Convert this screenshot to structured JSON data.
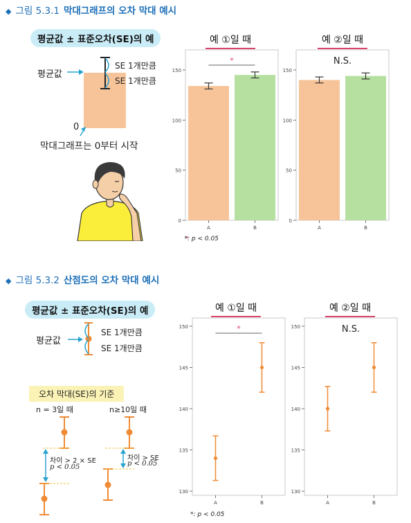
{
  "fig1": {
    "heading_number": "그림 5.3.1",
    "heading_title": "막대그래프의 오차 막대 예시",
    "pill": "평균값 ± 표준오차(SE)의 예",
    "mean_label": "평균값",
    "se_label_1": "SE 1개만큼",
    "se_label_2": "SE 1개만큼",
    "zero_label": "0",
    "note": "막대그래프는 0부터 시작",
    "panel_left_title": "예 ①일 때",
    "panel_right_title": "예 ②일 때",
    "star": "*",
    "ns": "N.S.",
    "footnote": "*: p < 0.05"
  },
  "fig2": {
    "heading_number": "그림 5.3.2",
    "heading_title": "산점도의 오차 막대 예시",
    "pill": "평균값 ± 표준오차(SE)의 예",
    "mean_label": "평균값",
    "se_label_1": "SE 1개만큼",
    "se_label_2": "SE 1개만큼",
    "criteria_title": "오차 막대(SE)의 기준",
    "n3_label": "n = 3일 때",
    "n10_label": "n≥10일 때",
    "diff_n3": "차이 > 2 × SE",
    "diff_n10": "차이 > SE",
    "p_label": "p < 0.05",
    "panel_left_title": "예 ①일 때",
    "panel_right_title": "예 ②일 때",
    "star": "*",
    "ns": "N.S.",
    "footnote": "*: p < 0.05"
  },
  "chart_data": [
    {
      "type": "bar",
      "categories": [
        "A",
        "B"
      ],
      "values": [
        134,
        145
      ],
      "errors": [
        3,
        3
      ],
      "ylim": [
        0,
        170
      ],
      "yticks": [
        0,
        50,
        100,
        150
      ],
      "colors": [
        "#f7c49a",
        "#b6e0a0"
      ],
      "annotation": "*"
    },
    {
      "type": "bar",
      "categories": [
        "A",
        "B"
      ],
      "values": [
        140,
        144
      ],
      "errors": [
        3,
        3
      ],
      "ylim": [
        0,
        170
      ],
      "yticks": [
        0,
        50,
        100,
        150
      ],
      "colors": [
        "#f7c49a",
        "#b6e0a0"
      ],
      "annotation": "N.S."
    },
    {
      "type": "scatter",
      "categories": [
        "A",
        "B"
      ],
      "values": [
        134,
        145
      ],
      "errors": [
        2.7,
        3
      ],
      "ylim": [
        129.5,
        151
      ],
      "yticks": [
        130,
        135,
        140,
        145,
        150
      ],
      "colors": [
        "#f08a34"
      ],
      "annotation": "*"
    },
    {
      "type": "scatter",
      "categories": [
        "A",
        "B"
      ],
      "values": [
        140,
        145
      ],
      "errors": [
        2.7,
        3
      ],
      "ylim": [
        129.5,
        151
      ],
      "yticks": [
        130,
        135,
        140,
        145,
        150
      ],
      "colors": [
        "#f08a34"
      ],
      "annotation": "N.S."
    }
  ]
}
